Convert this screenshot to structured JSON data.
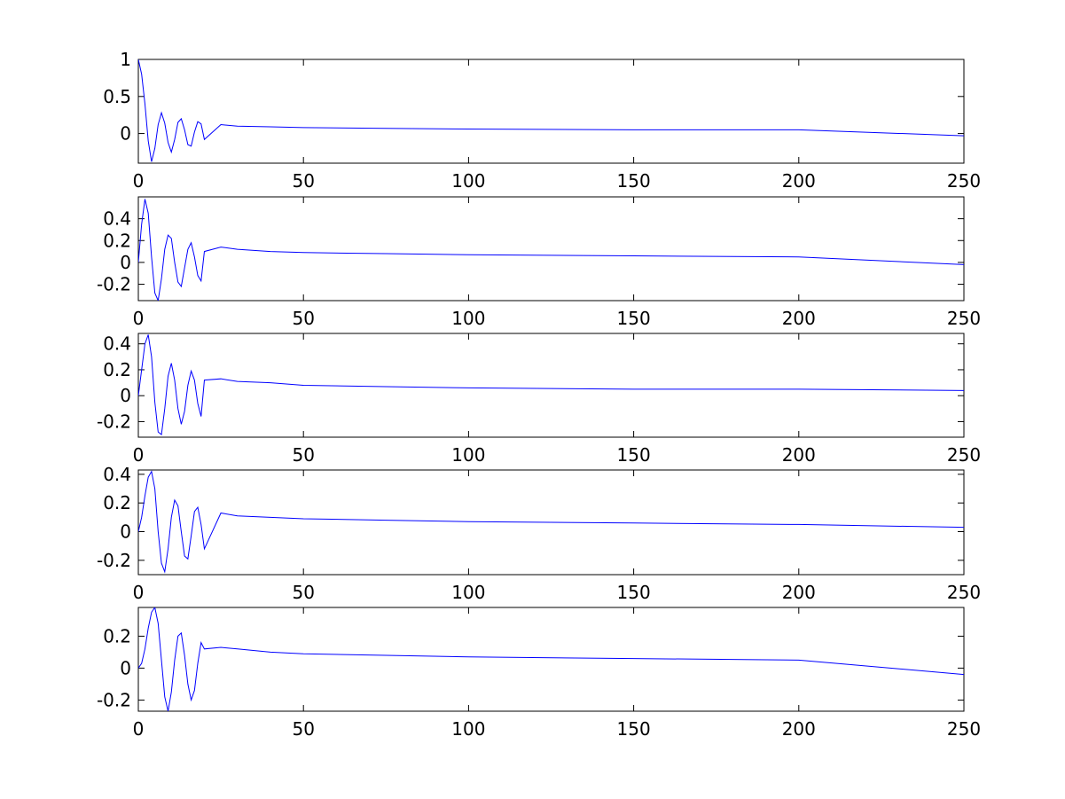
{
  "figure": {
    "background": "#ffffff",
    "line_color": "#0000ff",
    "axis_color": "#000000"
  },
  "chart_data": [
    {
      "type": "line",
      "title": "",
      "xlabel": "",
      "ylabel": "",
      "xlim": [
        0,
        250
      ],
      "ylim": [
        -0.4,
        1.0
      ],
      "xticks": [
        0,
        50,
        100,
        150,
        200,
        250
      ],
      "xtick_labels": [
        "0",
        "50",
        "100",
        "150",
        "200",
        "250"
      ],
      "yticks": [
        0,
        0.5,
        1
      ],
      "ytick_labels": [
        "0",
        "0.5",
        "1"
      ],
      "grid": false,
      "series": [
        {
          "x": [
            0,
            1,
            2,
            3,
            4,
            5,
            6,
            7,
            8,
            9,
            10,
            11,
            12,
            13,
            14,
            15,
            16,
            17,
            18,
            19,
            20,
            25,
            30,
            40,
            50,
            75,
            100,
            150,
            200,
            250
          ],
          "y": [
            1.0,
            0.8,
            0.4,
            -0.1,
            -0.38,
            -0.2,
            0.12,
            0.28,
            0.14,
            -0.12,
            -0.25,
            -0.08,
            0.15,
            0.2,
            0.05,
            -0.15,
            -0.17,
            0.02,
            0.16,
            0.13,
            -0.08,
            0.12,
            0.1,
            0.09,
            0.08,
            0.07,
            0.06,
            0.05,
            0.05,
            -0.03
          ]
        }
      ]
    },
    {
      "type": "line",
      "title": "",
      "xlabel": "",
      "ylabel": "",
      "xlim": [
        0,
        250
      ],
      "ylim": [
        -0.35,
        0.6
      ],
      "xticks": [
        0,
        50,
        100,
        150,
        200,
        250
      ],
      "xtick_labels": [
        "0",
        "50",
        "100",
        "150",
        "200",
        "250"
      ],
      "yticks": [
        -0.2,
        0,
        0.2,
        0.4
      ],
      "ytick_labels": [
        "-0.2",
        "0",
        "0.2",
        "0.4"
      ],
      "grid": false,
      "series": [
        {
          "x": [
            0,
            1,
            2,
            3,
            4,
            5,
            6,
            7,
            8,
            9,
            10,
            11,
            12,
            13,
            14,
            15,
            16,
            17,
            18,
            19,
            20,
            25,
            30,
            40,
            50,
            75,
            100,
            150,
            200,
            250
          ],
          "y": [
            0.0,
            0.35,
            0.58,
            0.45,
            0.05,
            -0.28,
            -0.35,
            -0.15,
            0.12,
            0.25,
            0.22,
            0.0,
            -0.18,
            -0.22,
            -0.05,
            0.12,
            0.18,
            0.05,
            -0.12,
            -0.17,
            0.1,
            0.14,
            0.12,
            0.1,
            0.09,
            0.08,
            0.07,
            0.06,
            0.05,
            -0.02
          ]
        }
      ]
    },
    {
      "type": "line",
      "title": "",
      "xlabel": "",
      "ylabel": "",
      "xlim": [
        0,
        250
      ],
      "ylim": [
        -0.32,
        0.48
      ],
      "xticks": [
        0,
        50,
        100,
        150,
        200,
        250
      ],
      "xtick_labels": [
        "0",
        "50",
        "100",
        "150",
        "200",
        "250"
      ],
      "yticks": [
        -0.2,
        0,
        0.2,
        0.4
      ],
      "ytick_labels": [
        "-0.2",
        "0",
        "0.2",
        "0.4"
      ],
      "grid": false,
      "series": [
        {
          "x": [
            0,
            1,
            2,
            3,
            4,
            5,
            6,
            7,
            8,
            9,
            10,
            11,
            12,
            13,
            14,
            15,
            16,
            17,
            18,
            19,
            20,
            25,
            30,
            40,
            50,
            75,
            100,
            150,
            200,
            250
          ],
          "y": [
            0.0,
            0.2,
            0.4,
            0.47,
            0.3,
            -0.05,
            -0.28,
            -0.3,
            -0.1,
            0.15,
            0.25,
            0.12,
            -0.1,
            -0.22,
            -0.12,
            0.08,
            0.19,
            0.12,
            -0.06,
            -0.16,
            0.12,
            0.13,
            0.11,
            0.1,
            0.08,
            0.07,
            0.06,
            0.05,
            0.05,
            0.04
          ]
        }
      ]
    },
    {
      "type": "line",
      "title": "",
      "xlabel": "",
      "ylabel": "",
      "xlim": [
        0,
        250
      ],
      "ylim": [
        -0.3,
        0.43
      ],
      "xticks": [
        0,
        50,
        100,
        150,
        200,
        250
      ],
      "xtick_labels": [
        "0",
        "50",
        "100",
        "150",
        "200",
        "250"
      ],
      "yticks": [
        -0.2,
        0,
        0.2,
        0.4
      ],
      "ytick_labels": [
        "-0.2",
        "0",
        "0.2",
        "0.4"
      ],
      "grid": false,
      "series": [
        {
          "x": [
            0,
            1,
            2,
            3,
            4,
            5,
            6,
            7,
            8,
            9,
            10,
            11,
            12,
            13,
            14,
            15,
            16,
            17,
            18,
            19,
            20,
            25,
            30,
            40,
            50,
            75,
            100,
            150,
            200,
            250
          ],
          "y": [
            0.0,
            0.1,
            0.25,
            0.38,
            0.42,
            0.3,
            0.0,
            -0.22,
            -0.28,
            -0.12,
            0.1,
            0.22,
            0.18,
            0.0,
            -0.17,
            -0.19,
            -0.03,
            0.14,
            0.17,
            0.05,
            -0.12,
            0.13,
            0.11,
            0.1,
            0.09,
            0.08,
            0.07,
            0.06,
            0.05,
            0.03
          ]
        }
      ]
    },
    {
      "type": "line",
      "title": "",
      "xlabel": "",
      "ylabel": "",
      "xlim": [
        0,
        250
      ],
      "ylim": [
        -0.27,
        0.38
      ],
      "xticks": [
        0,
        50,
        100,
        150,
        200,
        250
      ],
      "xtick_labels": [
        "0",
        "50",
        "100",
        "150",
        "200",
        "250"
      ],
      "yticks": [
        -0.2,
        0,
        0.2
      ],
      "ytick_labels": [
        "-0.2",
        "0",
        "0.2"
      ],
      "grid": false,
      "series": [
        {
          "x": [
            0,
            1,
            2,
            3,
            4,
            5,
            6,
            7,
            8,
            9,
            10,
            11,
            12,
            13,
            14,
            15,
            16,
            17,
            18,
            19,
            20,
            25,
            30,
            40,
            50,
            75,
            100,
            150,
            200,
            250
          ],
          "y": [
            0.0,
            0.03,
            0.12,
            0.25,
            0.35,
            0.38,
            0.28,
            0.05,
            -0.18,
            -0.27,
            -0.15,
            0.05,
            0.2,
            0.22,
            0.08,
            -0.1,
            -0.2,
            -0.14,
            0.03,
            0.16,
            0.12,
            0.13,
            0.12,
            0.1,
            0.09,
            0.08,
            0.07,
            0.06,
            0.05,
            -0.04
          ]
        }
      ]
    }
  ]
}
